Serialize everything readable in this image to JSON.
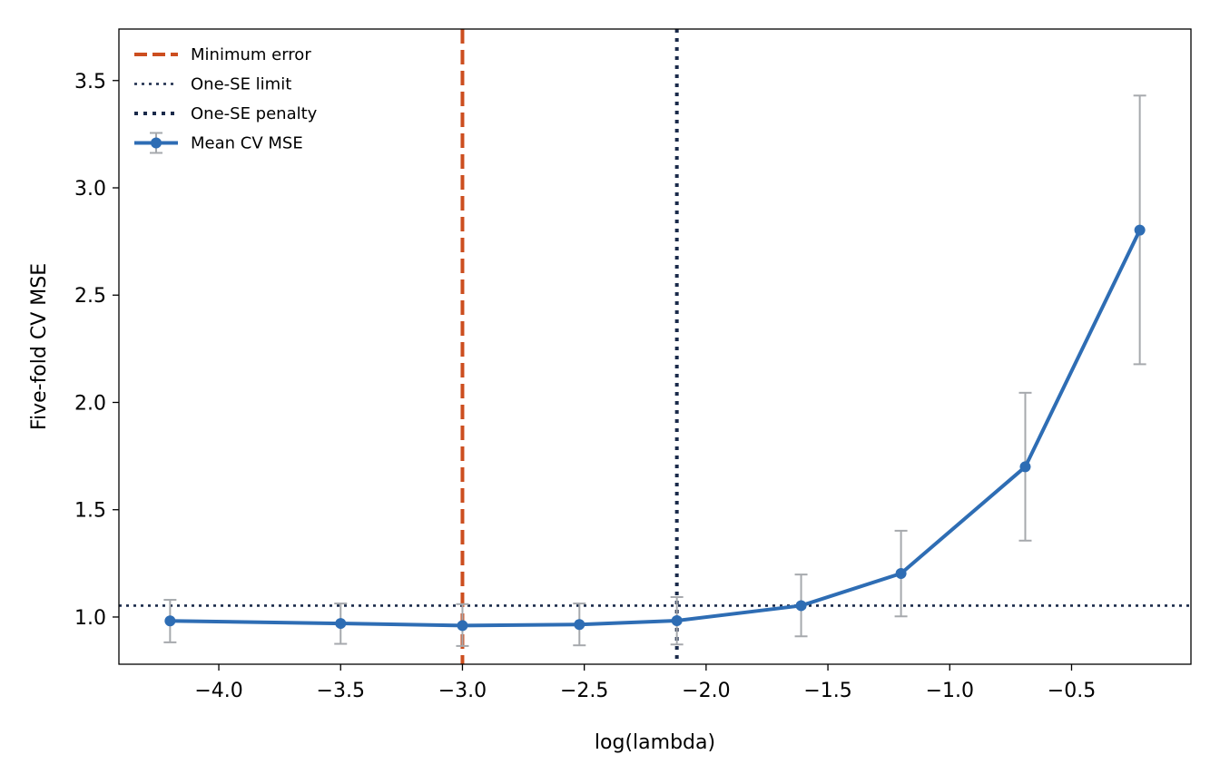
{
  "chart_data": {
    "type": "line",
    "xlabel": "log(lambda)",
    "ylabel": "Five-fold CV MSE",
    "xlim": [
      -4.41,
      -0.01
    ],
    "ylim": [
      0.78,
      3.74
    ],
    "x_ticks": [
      -4.0,
      -3.5,
      -3.0,
      -2.5,
      -2.0,
      -1.5,
      -1.0,
      -0.5
    ],
    "x_tick_labels": [
      "−4.0",
      "−3.5",
      "−3.0",
      "−2.5",
      "−2.0",
      "−1.5",
      "−1.0",
      "−0.5"
    ],
    "y_ticks": [
      1.0,
      1.5,
      2.0,
      2.5,
      3.0,
      3.5
    ],
    "y_tick_labels": [
      "1.0",
      "1.5",
      "2.0",
      "2.5",
      "3.0",
      "3.5"
    ],
    "grid": false,
    "legend_position": "top-left",
    "series": [
      {
        "name": "Mean CV MSE",
        "color": "#2e6db4",
        "x": [
          -4.2,
          -3.5,
          -3.0,
          -2.52,
          -2.12,
          -1.61,
          -1.2,
          -0.69,
          -0.22
        ],
        "y": [
          0.982,
          0.97,
          0.96,
          0.965,
          0.983,
          1.053,
          1.203,
          1.7,
          2.803
        ],
        "err_low": [
          0.882,
          0.875,
          0.865,
          0.868,
          0.872,
          0.91,
          1.003,
          1.356,
          2.178
        ],
        "err_high": [
          1.08,
          1.063,
          1.06,
          1.063,
          1.093,
          1.198,
          1.402,
          2.045,
          3.43
        ],
        "error_bar_color": "#a6a9ad"
      }
    ],
    "reference_lines": [
      {
        "name": "Minimum error",
        "orientation": "vertical",
        "value": -3.0,
        "style": "dashed",
        "color": "#cc4e1f"
      },
      {
        "name": "One-SE limit",
        "orientation": "horizontal",
        "value": 1.053,
        "style": "dotted",
        "color": "#1a2a4a"
      },
      {
        "name": "One-SE penalty",
        "orientation": "vertical",
        "value": -2.12,
        "style": "dotted",
        "color": "#1a2a4a"
      }
    ],
    "legend": [
      {
        "label": "Minimum error",
        "kind": "dashed",
        "color": "#cc4e1f"
      },
      {
        "label": "One-SE limit",
        "kind": "dotted-thin",
        "color": "#1a2a4a"
      },
      {
        "label": "One-SE penalty",
        "kind": "dotted-thick",
        "color": "#1a2a4a"
      },
      {
        "label": "Mean CV MSE",
        "kind": "errorbar-line",
        "color": "#2e6db4"
      }
    ]
  }
}
